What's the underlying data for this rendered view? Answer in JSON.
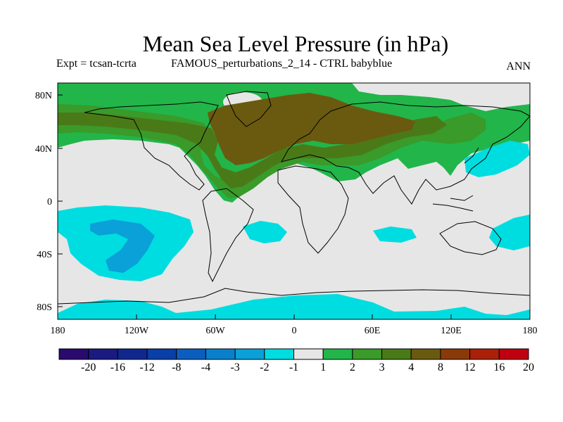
{
  "title": "Mean Sea Level Pressure (in hPa)",
  "expt_label": "Expt = tcsan-tcrta",
  "comparison_label": "FAMOUS_perturbations_2_14 - CTRL babyblue",
  "season_label": "ANN",
  "axes": {
    "x_ticks": [
      "180",
      "120W",
      "60W",
      "0",
      "60E",
      "120E",
      "180"
    ],
    "y_ticks": [
      "80N",
      "40N",
      "0",
      "40S",
      "80S"
    ]
  },
  "colorbar": {
    "labels": [
      "-20",
      "-16",
      "-12",
      "-8",
      "-4",
      "-3",
      "-2",
      "-1",
      "1",
      "2",
      "3",
      "4",
      "8",
      "12",
      "16",
      "20"
    ],
    "colors": [
      "#2a0a6e",
      "#1a1a80",
      "#10288e",
      "#0a3ea8",
      "#0a5ec0",
      "#0a80cc",
      "#0aa0d8",
      "#00dde0",
      "#e6e6e6",
      "#22b54a",
      "#3a9a2a",
      "#4a7a18",
      "#6a5a10",
      "#8a3a08",
      "#aa2008",
      "#c00010"
    ]
  },
  "colors": {
    "background": "#e6e6e6",
    "positive_1_2": "#22b54a",
    "positive_2_3": "#3a9a2a",
    "positive_3_4": "#4a7a18",
    "positive_4_8": "#6a5a10",
    "negative_1_2": "#00dde0",
    "negative_2_3": "#0aa0d8"
  }
}
